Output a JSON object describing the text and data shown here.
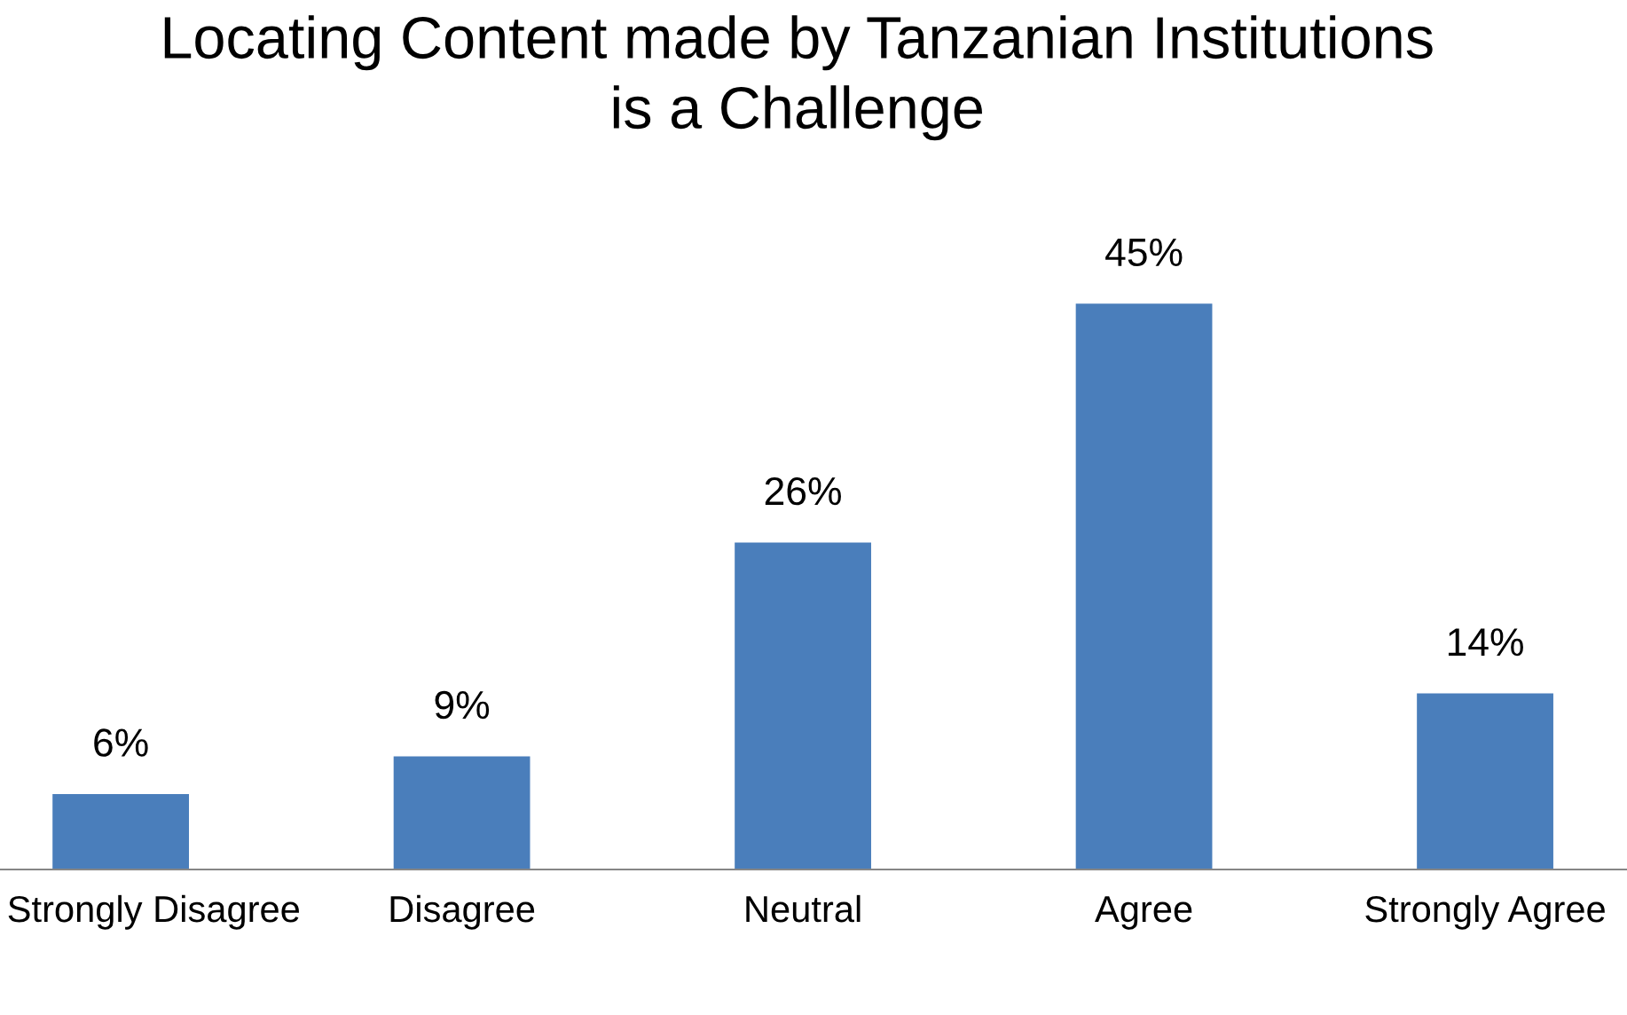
{
  "chart_data": {
    "type": "bar",
    "title": "Locating Content made by Tanzanian Institutions\nis a Challenge",
    "categories": [
      "Strongly Disagree",
      "Disagree",
      "Neutral",
      "Agree",
      "Strongly Agree"
    ],
    "values": [
      6,
      9,
      26,
      45,
      14
    ],
    "color": "#4a7ebb",
    "value_labels": [
      "6%",
      "9%",
      "26%",
      "45%",
      "14%"
    ],
    "grid": false,
    "legend": false
  }
}
